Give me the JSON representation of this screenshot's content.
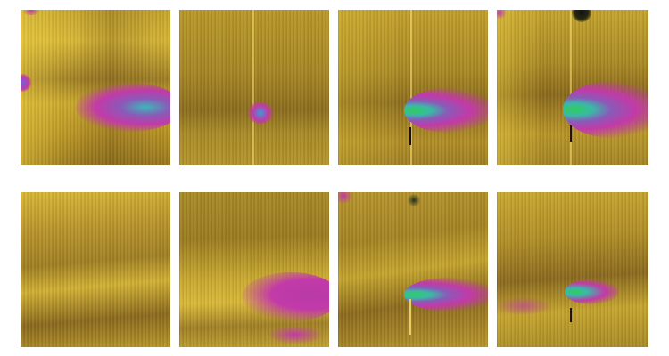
{
  "colors": {
    "background": "#b8962a",
    "highlight": "#e6c63a",
    "shadow": "#7a5a1a",
    "magenta": "#c23aa8",
    "cyan": "#3ab8a8",
    "green": "#2fcf5a"
  },
  "panels": [
    {
      "row": 1,
      "col": 1,
      "has_blob": true
    },
    {
      "row": 1,
      "col": 2,
      "has_blob": true
    },
    {
      "row": 1,
      "col": 3,
      "has_blob": true
    },
    {
      "row": 1,
      "col": 4,
      "has_blob": true
    },
    {
      "row": 2,
      "col": 1,
      "has_blob": false
    },
    {
      "row": 2,
      "col": 2,
      "has_blob": true
    },
    {
      "row": 2,
      "col": 3,
      "has_blob": true
    },
    {
      "row": 2,
      "col": 4,
      "has_blob": true
    }
  ]
}
